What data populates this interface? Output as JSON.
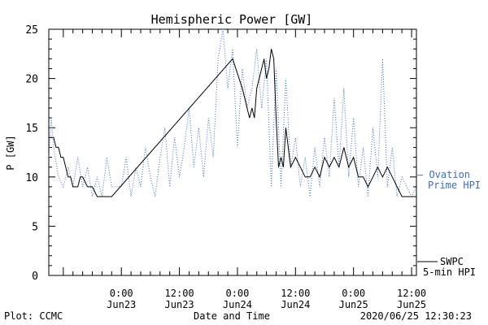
{
  "chart_data": {
    "type": "line",
    "title": "Hemispheric Power [GW]",
    "xlabel": "Date and Time",
    "ylabel": "P [GW]",
    "ylim": [
      0,
      25
    ],
    "yticks": [
      0,
      5,
      10,
      15,
      20,
      25
    ],
    "xlim": [
      "2020-06-22T09:00",
      "2020-06-25T13:00"
    ],
    "xticks": [
      {
        "time": "2020-06-23T00:00",
        "label_time": "0:00",
        "label_date": "Jun23"
      },
      {
        "time": "2020-06-23T12:00",
        "label_time": "12:00",
        "label_date": "Jun23"
      },
      {
        "time": "2020-06-24T00:00",
        "label_time": "0:00",
        "label_date": "Jun24"
      },
      {
        "time": "2020-06-24T12:00",
        "label_time": "12:00",
        "label_date": "Jun24"
      },
      {
        "time": "2020-06-25T00:00",
        "label_time": "0:00",
        "label_date": "Jun25"
      },
      {
        "time": "2020-06-25T12:00",
        "label_time": "12:00",
        "label_date": "Jun25"
      }
    ],
    "grid": false,
    "series": [
      {
        "name": "SWPC 5-min HPI",
        "color": "#000000",
        "style": "solid",
        "points": [
          [
            "2020-06-22T09:00",
            14
          ],
          [
            "2020-06-22T10:00",
            14
          ],
          [
            "2020-06-22T10:30",
            13
          ],
          [
            "2020-06-22T11:00",
            13
          ],
          [
            "2020-06-22T11:30",
            12
          ],
          [
            "2020-06-22T12:00",
            12
          ],
          [
            "2020-06-22T12:30",
            11
          ],
          [
            "2020-06-22T13:00",
            10
          ],
          [
            "2020-06-22T13:30",
            10
          ],
          [
            "2020-06-22T14:00",
            9
          ],
          [
            "2020-06-22T15:00",
            9
          ],
          [
            "2020-06-22T15:30",
            10
          ],
          [
            "2020-06-22T16:00",
            10
          ],
          [
            "2020-06-22T17:00",
            9
          ],
          [
            "2020-06-22T18:00",
            9
          ],
          [
            "2020-06-22T19:00",
            8
          ],
          [
            "2020-06-22T21:00",
            8
          ],
          [
            "2020-06-22T22:00",
            8
          ],
          [
            "2020-06-23T23:00",
            22
          ],
          [
            "2020-06-24T01:00",
            19
          ],
          [
            "2020-06-24T01:30",
            18
          ],
          [
            "2020-06-24T02:00",
            17
          ],
          [
            "2020-06-24T02:30",
            16
          ],
          [
            "2020-06-24T03:00",
            17
          ],
          [
            "2020-06-24T03:30",
            16
          ],
          [
            "2020-06-24T04:00",
            19
          ],
          [
            "2020-06-24T04:30",
            20
          ],
          [
            "2020-06-24T05:00",
            21
          ],
          [
            "2020-06-24T05:30",
            22
          ],
          [
            "2020-06-24T06:00",
            20
          ],
          [
            "2020-06-24T06:30",
            21
          ],
          [
            "2020-06-24T07:00",
            23
          ],
          [
            "2020-06-24T07:30",
            22
          ],
          [
            "2020-06-24T08:00",
            16
          ],
          [
            "2020-06-24T08:30",
            11
          ],
          [
            "2020-06-24T09:00",
            12
          ],
          [
            "2020-06-24T09:30",
            11
          ],
          [
            "2020-06-24T10:00",
            15
          ],
          [
            "2020-06-24T11:00",
            11
          ],
          [
            "2020-06-24T12:00",
            12
          ],
          [
            "2020-06-24T13:00",
            11
          ],
          [
            "2020-06-24T14:00",
            10
          ],
          [
            "2020-06-24T15:00",
            10
          ],
          [
            "2020-06-24T16:00",
            11
          ],
          [
            "2020-06-24T17:00",
            10
          ],
          [
            "2020-06-24T18:00",
            12
          ],
          [
            "2020-06-24T19:00",
            11
          ],
          [
            "2020-06-24T20:00",
            12
          ],
          [
            "2020-06-24T21:00",
            11
          ],
          [
            "2020-06-24T22:00",
            13
          ],
          [
            "2020-06-24T23:00",
            11
          ],
          [
            "2020-06-25T00:00",
            12
          ],
          [
            "2020-06-25T01:00",
            10
          ],
          [
            "2020-06-25T02:00",
            10
          ],
          [
            "2020-06-25T03:00",
            9
          ],
          [
            "2020-06-25T04:00",
            10
          ],
          [
            "2020-06-25T05:00",
            11
          ],
          [
            "2020-06-25T06:00",
            10
          ],
          [
            "2020-06-25T07:00",
            11
          ],
          [
            "2020-06-25T08:00",
            10
          ],
          [
            "2020-06-25T09:00",
            9
          ],
          [
            "2020-06-25T10:00",
            8
          ],
          [
            "2020-06-25T11:00",
            8
          ],
          [
            "2020-06-25T13:00",
            8
          ]
        ]
      },
      {
        "name": "Ovation Prime HPI",
        "color": "#3a6fc0",
        "style": "dotted",
        "points": [
          [
            "2020-06-22T09:00",
            12
          ],
          [
            "2020-06-22T09:30",
            16
          ],
          [
            "2020-06-22T10:00",
            13
          ],
          [
            "2020-06-22T11:00",
            10
          ],
          [
            "2020-06-22T12:00",
            9
          ],
          [
            "2020-06-22T13:00",
            11
          ],
          [
            "2020-06-22T14:00",
            9
          ],
          [
            "2020-06-22T15:00",
            12
          ],
          [
            "2020-06-22T16:00",
            9
          ],
          [
            "2020-06-22T17:00",
            11
          ],
          [
            "2020-06-22T18:00",
            8
          ],
          [
            "2020-06-22T19:00",
            10
          ],
          [
            "2020-06-22T20:00",
            8
          ],
          [
            "2020-06-22T21:00",
            12
          ],
          [
            "2020-06-22T22:00",
            9
          ],
          [
            "2020-06-23T00:00",
            9
          ],
          [
            "2020-06-23T01:00",
            12
          ],
          [
            "2020-06-23T02:00",
            8
          ],
          [
            "2020-06-23T03:00",
            11
          ],
          [
            "2020-06-23T04:00",
            9
          ],
          [
            "2020-06-23T05:00",
            13
          ],
          [
            "2020-06-23T06:00",
            10
          ],
          [
            "2020-06-23T07:00",
            8
          ],
          [
            "2020-06-23T08:00",
            12
          ],
          [
            "2020-06-23T09:00",
            15
          ],
          [
            "2020-06-23T10:00",
            9
          ],
          [
            "2020-06-23T11:00",
            14
          ],
          [
            "2020-06-23T12:00",
            10
          ],
          [
            "2020-06-23T13:00",
            13
          ],
          [
            "2020-06-23T14:00",
            17
          ],
          [
            "2020-06-23T15:00",
            11
          ],
          [
            "2020-06-23T16:00",
            15
          ],
          [
            "2020-06-23T17:00",
            10
          ],
          [
            "2020-06-23T18:00",
            16
          ],
          [
            "2020-06-23T19:00",
            12
          ],
          [
            "2020-06-23T20:00",
            22
          ],
          [
            "2020-06-23T21:00",
            25
          ],
          [
            "2020-06-23T22:00",
            19
          ],
          [
            "2020-06-23T23:00",
            23
          ],
          [
            "2020-06-24T00:00",
            13
          ],
          [
            "2020-06-24T01:00",
            21
          ],
          [
            "2020-06-24T02:00",
            17
          ],
          [
            "2020-06-24T03:00",
            19
          ],
          [
            "2020-06-24T04:00",
            23
          ],
          [
            "2020-06-24T05:00",
            17
          ],
          [
            "2020-06-24T06:00",
            22
          ],
          [
            "2020-06-24T07:00",
            9
          ],
          [
            "2020-06-24T08:00",
            21
          ],
          [
            "2020-06-24T09:00",
            9
          ],
          [
            "2020-06-24T10:00",
            20
          ],
          [
            "2020-06-24T11:00",
            11
          ],
          [
            "2020-06-24T12:00",
            14
          ],
          [
            "2020-06-24T13:00",
            9
          ],
          [
            "2020-06-24T14:00",
            12
          ],
          [
            "2020-06-24T15:00",
            8
          ],
          [
            "2020-06-24T16:00",
            13
          ],
          [
            "2020-06-24T17:00",
            9
          ],
          [
            "2020-06-24T18:00",
            14
          ],
          [
            "2020-06-24T19:00",
            10
          ],
          [
            "2020-06-24T20:00",
            18
          ],
          [
            "2020-06-24T21:00",
            11
          ],
          [
            "2020-06-24T22:00",
            19
          ],
          [
            "2020-06-24T23:00",
            10
          ],
          [
            "2020-06-25T00:00",
            16
          ],
          [
            "2020-06-25T01:00",
            9
          ],
          [
            "2020-06-25T02:00",
            13
          ],
          [
            "2020-06-25T03:00",
            8
          ],
          [
            "2020-06-25T04:00",
            15
          ],
          [
            "2020-06-25T05:00",
            10
          ],
          [
            "2020-06-25T06:00",
            22
          ],
          [
            "2020-06-25T07:00",
            9
          ],
          [
            "2020-06-25T08:00",
            13
          ],
          [
            "2020-06-25T09:00",
            8
          ],
          [
            "2020-06-25T10:00",
            10
          ],
          [
            "2020-06-25T11:00",
            9
          ],
          [
            "2020-06-25T12:00",
            8
          ],
          [
            "2020-06-25T13:00",
            9
          ]
        ]
      }
    ]
  },
  "legend": {
    "ovation_line1": "— Ovation",
    "ovation_line2": "Prime HPI",
    "swpc_line1": "SWPC",
    "swpc_line2": "5-min HPI"
  },
  "footer": {
    "plot_credit": "Plot: CCMC",
    "timestamp": "2020/06/25 12:30:23"
  }
}
